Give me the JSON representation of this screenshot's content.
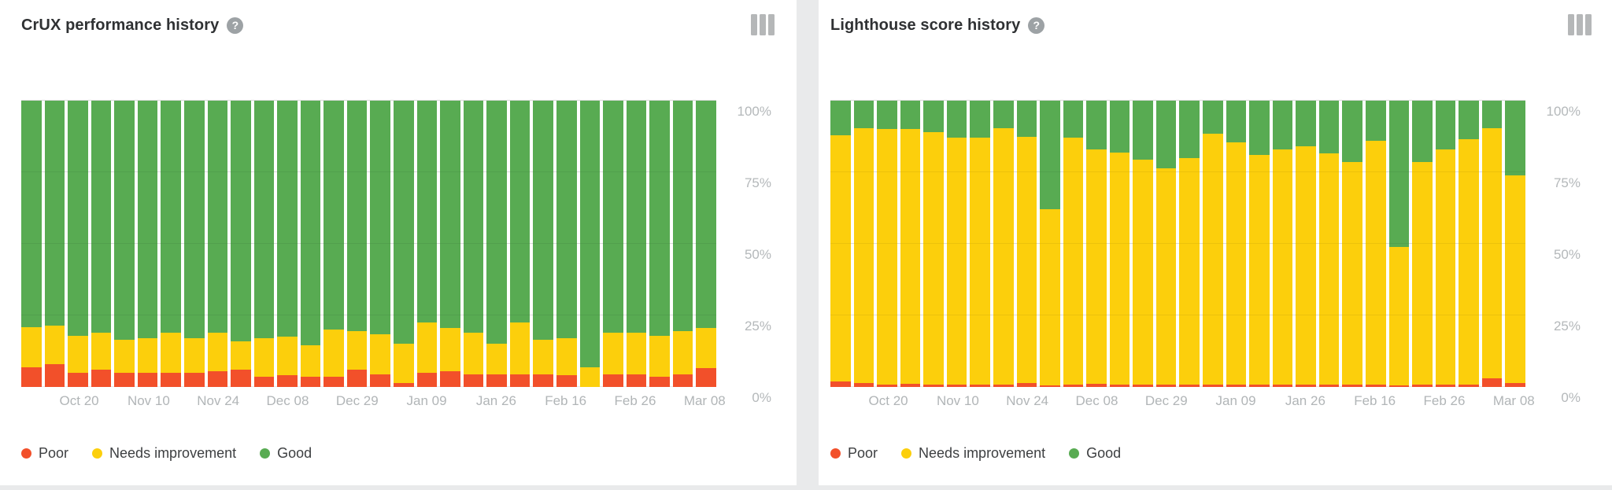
{
  "page": {
    "background": "#e9eaeb",
    "card_background": "#ffffff"
  },
  "colors": {
    "poor": "#f2502a",
    "needs_improvement": "#fccf0c",
    "good": "#58ab52",
    "axis_text": "#b4b8ba",
    "gridline": "#e8e8e8"
  },
  "legend": [
    {
      "label": "Poor",
      "color_key": "poor"
    },
    {
      "label": "Needs improvement",
      "color_key": "needs_improvement"
    },
    {
      "label": "Good",
      "color_key": "good"
    }
  ],
  "charts": [
    {
      "title": "CrUX performance history",
      "help_label": "?"
    },
    {
      "title": "Lighthouse score history",
      "help_label": "?"
    }
  ],
  "chart_data": [
    {
      "type": "bar",
      "stacked": true,
      "title": "CrUX performance history",
      "unit": "%",
      "ylim": [
        0,
        100
      ],
      "y_ticks": [
        "100%",
        "75%",
        "50%",
        "25%",
        "0%"
      ],
      "y_tick_values": [
        100,
        75,
        50,
        25,
        0
      ],
      "gridlines": [
        0,
        25,
        50,
        75,
        100
      ],
      "bar_count": 30,
      "x_tick_labels": [
        "Oct 20",
        "Nov 10",
        "Nov 24",
        "Dec 08",
        "Dec 29",
        "Jan 09",
        "Jan 26",
        "Feb 16",
        "Feb 26",
        "Mar 08"
      ],
      "x_tick_positions": [
        3,
        6,
        9,
        12,
        15,
        18,
        21,
        24,
        27,
        30
      ],
      "legend_position": "bottom-left",
      "series": [
        {
          "name": "Poor",
          "color_key": "poor",
          "values": [
            7,
            8,
            5,
            6,
            5,
            5,
            5,
            5,
            5.5,
            6,
            3.5,
            4,
            3.5,
            3.5,
            6,
            4.5,
            1.5,
            5,
            5.5,
            4.5,
            4.5,
            4.5,
            4.5,
            4,
            0,
            4.5,
            4.5,
            3.5,
            4.5,
            6.5
          ]
        },
        {
          "name": "Needs improvement",
          "color_key": "needs_improvement",
          "values": [
            14,
            13.5,
            13,
            13,
            11.5,
            12,
            14,
            12,
            13.5,
            10,
            13.5,
            13.5,
            11,
            16.5,
            13.5,
            14,
            13.5,
            17.5,
            15,
            14.5,
            10.5,
            18,
            12,
            13,
            7,
            14.5,
            14.5,
            14.5,
            15,
            14
          ]
        },
        {
          "name": "Good",
          "color_key": "good",
          "values": [
            79,
            78.5,
            82,
            81,
            83.5,
            83,
            81,
            83,
            81,
            84,
            83,
            82.5,
            85.5,
            80,
            80.5,
            81.5,
            85,
            77.5,
            79.5,
            81,
            85,
            77.5,
            83.5,
            83,
            93,
            81,
            81,
            82,
            80.5,
            79.5
          ]
        }
      ]
    },
    {
      "type": "bar",
      "stacked": true,
      "title": "Lighthouse score history",
      "unit": "%",
      "ylim": [
        0,
        100
      ],
      "y_ticks": [
        "100%",
        "75%",
        "50%",
        "25%",
        "0%"
      ],
      "y_tick_values": [
        100,
        75,
        50,
        25,
        0
      ],
      "gridlines": [
        0,
        25,
        50,
        75,
        100
      ],
      "bar_count": 30,
      "x_tick_labels": [
        "Oct 20",
        "Nov 10",
        "Nov 24",
        "Dec 08",
        "Dec 29",
        "Jan 09",
        "Jan 26",
        "Feb 16",
        "Feb 26",
        "Mar 08"
      ],
      "x_tick_positions": [
        3,
        6,
        9,
        12,
        15,
        18,
        21,
        24,
        27,
        30
      ],
      "legend_position": "bottom-left",
      "series": [
        {
          "name": "Poor",
          "color_key": "poor",
          "values": [
            2,
            1.5,
            0.8,
            1.2,
            0.8,
            0.8,
            0.8,
            0.7,
            1.5,
            0.6,
            0.8,
            1,
            0.8,
            0.8,
            0.8,
            0.8,
            0.8,
            0.8,
            0.8,
            0.8,
            0.8,
            0.8,
            0.8,
            0.8,
            0.5,
            0.8,
            0.8,
            0.8,
            3,
            1.5
          ]
        },
        {
          "name": "Needs improvement",
          "color_key": "needs_improvement",
          "values": [
            86,
            89,
            89.2,
            88.8,
            88.2,
            86.2,
            86.2,
            89.8,
            86,
            61.4,
            86.2,
            82,
            81.2,
            78.7,
            75.7,
            79.2,
            87.7,
            84.7,
            80.2,
            82.2,
            83.2,
            80.7,
            77.7,
            85.2,
            48.5,
            77.7,
            82.2,
            85.7,
            87.5,
            72.5
          ]
        },
        {
          "name": "Good",
          "color_key": "good",
          "values": [
            12,
            9.5,
            10,
            10,
            11,
            13,
            13,
            9.5,
            12.5,
            38,
            13,
            17,
            18,
            20.5,
            23.5,
            20,
            11.5,
            14.5,
            19,
            17,
            16,
            18.5,
            21.5,
            14,
            51,
            21.5,
            17,
            13.5,
            9.5,
            26
          ]
        }
      ]
    }
  ]
}
